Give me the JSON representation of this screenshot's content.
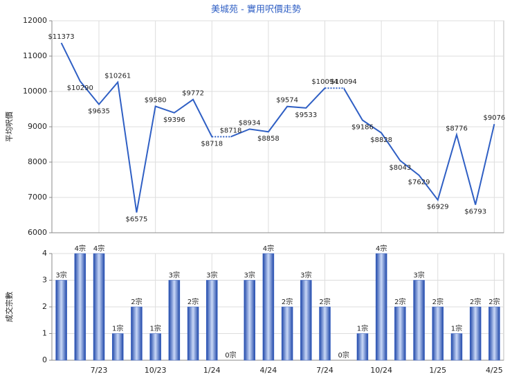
{
  "chart_data": [
    {
      "type": "line",
      "title": "美城苑 - 實用呎價走勢",
      "y_label": "平均呎價",
      "categories": [
        null,
        null,
        "7/23",
        null,
        null,
        "10/23",
        null,
        null,
        "1/24",
        null,
        null,
        "4/24",
        null,
        null,
        "7/24",
        null,
        null,
        "10/24",
        null,
        null,
        "1/25",
        null,
        null,
        "4/25"
      ],
      "values": [
        11373,
        10290,
        9635,
        10261,
        6575,
        9580,
        9396,
        9772,
        8718,
        8718,
        8934,
        8858,
        9574,
        9533,
        10094,
        10094,
        9186,
        8828,
        8043,
        7629,
        6929,
        8776,
        6793,
        9076
      ],
      "value_labels": [
        "$11373",
        "$10290",
        "$9635",
        "$10261",
        "$6575",
        "$9580",
        "$9396",
        "$9772",
        "$8718",
        "$8718",
        "$8934",
        "$8858",
        "$9574",
        "$9533",
        "$10094",
        "$10094",
        "$9186",
        "$8828",
        "$8043",
        "$7629",
        "$6929",
        "$8776",
        "$6793",
        "$9076"
      ],
      "color": "#2f5fc4",
      "ylim": [
        6000,
        12000
      ],
      "yticks": [
        6000,
        7000,
        8000,
        9000,
        10000,
        11000,
        12000
      ],
      "grid": true
    },
    {
      "type": "bar",
      "y_label": "成交宗數",
      "categories": [
        null,
        null,
        "7/23",
        null,
        null,
        "10/23",
        null,
        null,
        "1/24",
        null,
        null,
        "4/24",
        null,
        null,
        "7/24",
        null,
        null,
        "10/24",
        null,
        null,
        "1/25",
        null,
        null,
        "4/25"
      ],
      "values": [
        3,
        4,
        4,
        1,
        2,
        1,
        3,
        2,
        3,
        0,
        3,
        4,
        2,
        3,
        2,
        0,
        1,
        4,
        2,
        3,
        2,
        1,
        2,
        2
      ],
      "value_labels": [
        "3宗",
        "4宗",
        "4宗",
        "1宗",
        "2宗",
        "1宗",
        "3宗",
        "2宗",
        "3宗",
        "0宗",
        "3宗",
        "4宗",
        "2宗",
        "3宗",
        "2宗",
        "0宗",
        "1宗",
        "4宗",
        "2宗",
        "3宗",
        "2宗",
        "1宗",
        "2宗",
        "2宗"
      ],
      "color": "#3a64c8",
      "ylim": [
        0,
        4
      ],
      "yticks": [
        0,
        1,
        2,
        3,
        4
      ],
      "grid": true
    }
  ]
}
